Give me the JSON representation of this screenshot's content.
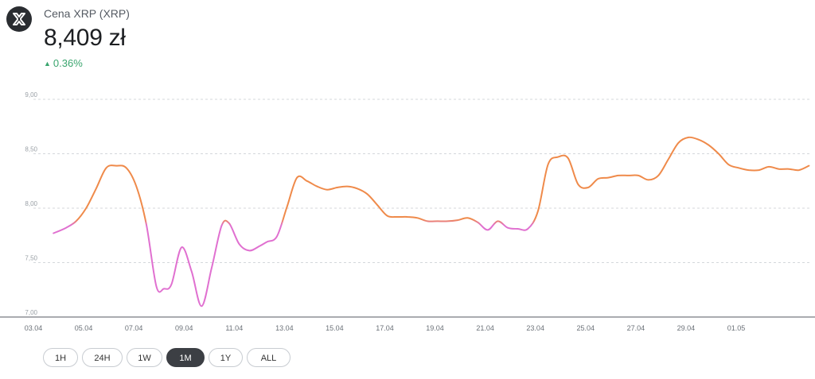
{
  "header": {
    "coin_name": "Cena XRP (XRP)",
    "price": "8,409 zł",
    "change": "0.36%",
    "change_color": "#3aa56e",
    "logo_icon": "xrp-logo-icon"
  },
  "ranges": [
    {
      "label": "1H",
      "active": false
    },
    {
      "label": "24H",
      "active": false
    },
    {
      "label": "1W",
      "active": false
    },
    {
      "label": "1M",
      "active": true
    },
    {
      "label": "1Y",
      "active": false
    },
    {
      "label": "ALL",
      "active": false
    }
  ],
  "chart_data": {
    "type": "line",
    "ylim": [
      7.0,
      9.0
    ],
    "yticks": [
      "9,00",
      "8,50",
      "8,00",
      "7,50",
      "7,00"
    ],
    "ytick_values": [
      9.0,
      8.5,
      8.0,
      7.5,
      7.0
    ],
    "xlim": [
      0,
      30.95
    ],
    "xticks": [
      {
        "label": "03.04",
        "x": 0
      },
      {
        "label": "05.04",
        "x": 2
      },
      {
        "label": "07.04",
        "x": 4
      },
      {
        "label": "09.04",
        "x": 6
      },
      {
        "label": "11.04",
        "x": 8
      },
      {
        "label": "13.04",
        "x": 10
      },
      {
        "label": "15.04",
        "x": 12
      },
      {
        "label": "17.04",
        "x": 14
      },
      {
        "label": "19.04",
        "x": 16
      },
      {
        "label": "21.04",
        "x": 18
      },
      {
        "label": "23.04",
        "x": 20
      },
      {
        "label": "25.04",
        "x": 22
      },
      {
        "label": "27.04",
        "x": 24
      },
      {
        "label": "29.04",
        "x": 26
      },
      {
        "label": "01.05",
        "x": 28
      }
    ],
    "grid": true,
    "color_down": "#e070d0",
    "color_up": "#ef8a4a",
    "threshold": 7.9,
    "series": [
      {
        "points": [
          [
            0.8,
            7.77
          ],
          [
            1.3,
            7.82
          ],
          [
            1.7,
            7.88
          ],
          [
            2.1,
            8.0
          ],
          [
            2.5,
            8.18
          ],
          [
            2.9,
            8.37
          ],
          [
            3.3,
            8.39
          ],
          [
            3.7,
            8.37
          ],
          [
            4.1,
            8.2
          ],
          [
            4.5,
            7.85
          ],
          [
            4.9,
            7.28
          ],
          [
            5.2,
            7.26
          ],
          [
            5.5,
            7.3
          ],
          [
            5.9,
            7.64
          ],
          [
            6.3,
            7.42
          ],
          [
            6.7,
            7.1
          ],
          [
            7.1,
            7.45
          ],
          [
            7.5,
            7.84
          ],
          [
            7.8,
            7.86
          ],
          [
            8.2,
            7.67
          ],
          [
            8.6,
            7.61
          ],
          [
            9.0,
            7.65
          ],
          [
            9.3,
            7.69
          ],
          [
            9.7,
            7.74
          ],
          [
            10.1,
            8.01
          ],
          [
            10.5,
            8.28
          ],
          [
            10.9,
            8.25
          ],
          [
            11.3,
            8.2
          ],
          [
            11.7,
            8.17
          ],
          [
            12.1,
            8.19
          ],
          [
            12.5,
            8.2
          ],
          [
            12.9,
            8.18
          ],
          [
            13.3,
            8.13
          ],
          [
            13.7,
            8.03
          ],
          [
            14.1,
            7.93
          ],
          [
            14.5,
            7.92
          ],
          [
            14.9,
            7.92
          ],
          [
            15.3,
            7.91
          ],
          [
            15.7,
            7.88
          ],
          [
            16.1,
            7.88
          ],
          [
            16.5,
            7.88
          ],
          [
            16.9,
            7.89
          ],
          [
            17.3,
            7.91
          ],
          [
            17.7,
            7.87
          ],
          [
            18.1,
            7.8
          ],
          [
            18.5,
            7.88
          ],
          [
            18.9,
            7.82
          ],
          [
            19.3,
            7.81
          ],
          [
            19.7,
            7.81
          ],
          [
            20.1,
            7.97
          ],
          [
            20.5,
            8.4
          ],
          [
            20.9,
            8.47
          ],
          [
            21.3,
            8.46
          ],
          [
            21.7,
            8.22
          ],
          [
            22.1,
            8.19
          ],
          [
            22.5,
            8.27
          ],
          [
            22.9,
            8.28
          ],
          [
            23.3,
            8.3
          ],
          [
            23.7,
            8.3
          ],
          [
            24.1,
            8.3
          ],
          [
            24.5,
            8.26
          ],
          [
            24.9,
            8.3
          ],
          [
            25.3,
            8.45
          ],
          [
            25.7,
            8.6
          ],
          [
            26.1,
            8.65
          ],
          [
            26.5,
            8.63
          ],
          [
            26.9,
            8.58
          ],
          [
            27.3,
            8.5
          ],
          [
            27.7,
            8.4
          ],
          [
            28.1,
            8.37
          ],
          [
            28.5,
            8.35
          ],
          [
            28.9,
            8.35
          ],
          [
            29.3,
            8.38
          ],
          [
            29.7,
            8.36
          ],
          [
            30.1,
            8.36
          ],
          [
            30.5,
            8.35
          ],
          [
            30.9,
            8.39
          ]
        ]
      }
    ]
  }
}
